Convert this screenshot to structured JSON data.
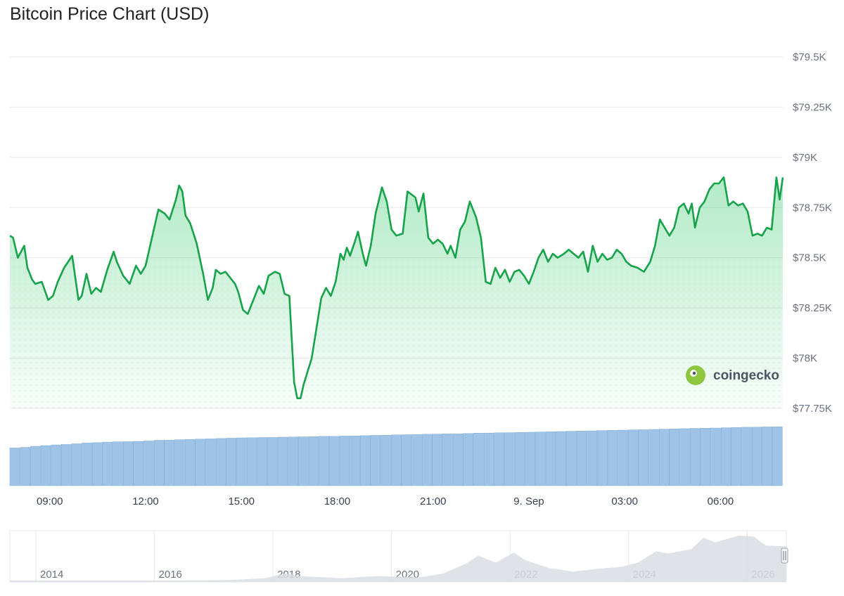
{
  "title": "Bitcoin Price Chart (USD)",
  "watermark": "coingecko",
  "colors": {
    "line": "#16a34a",
    "area": "#22c55e",
    "volume": "#9ec3e6",
    "volume_stroke": "#6fa3d4",
    "navigator": "#d9dee4",
    "grid": "#e5e7eb"
  },
  "chart_data": {
    "type": "area",
    "title": "Bitcoin Price Chart (USD)",
    "y_ticks": [
      "$79.5K",
      "$79.25K",
      "$79K",
      "$78.75K",
      "$78.5K",
      "$78.25K",
      "$78K",
      "$77.75K"
    ],
    "y_tick_values": [
      79500,
      79250,
      79000,
      78750,
      78500,
      78250,
      78000,
      77750
    ],
    "ylim": [
      77750,
      79500
    ],
    "x_ticks": [
      "09:00",
      "12:00",
      "15:00",
      "18:00",
      "21:00",
      "9. Sep",
      "03:00",
      "06:00"
    ],
    "x_tick_hours": [
      9,
      12,
      15,
      18,
      21,
      24,
      27,
      30
    ],
    "xlim_hours": [
      7.75,
      31.95
    ],
    "x_unit": "hours from 8 Sep 00:00",
    "grid": true,
    "series": [
      {
        "values": [
          [
            7.75,
            78610
          ],
          [
            7.85,
            78600
          ],
          [
            8.0,
            78500
          ],
          [
            8.2,
            78560
          ],
          [
            8.3,
            78450
          ],
          [
            8.45,
            78390
          ],
          [
            8.55,
            78370
          ],
          [
            8.75,
            78380
          ],
          [
            8.95,
            78290
          ],
          [
            9.1,
            78310
          ],
          [
            9.25,
            78380
          ],
          [
            9.45,
            78450
          ],
          [
            9.7,
            78510
          ],
          [
            9.9,
            78290
          ],
          [
            10.0,
            78310
          ],
          [
            10.15,
            78420
          ],
          [
            10.3,
            78320
          ],
          [
            10.45,
            78350
          ],
          [
            10.6,
            78330
          ],
          [
            10.8,
            78440
          ],
          [
            11.0,
            78530
          ],
          [
            11.1,
            78480
          ],
          [
            11.3,
            78410
          ],
          [
            11.4,
            78390
          ],
          [
            11.5,
            78370
          ],
          [
            11.7,
            78460
          ],
          [
            11.85,
            78420
          ],
          [
            12.0,
            78460
          ],
          [
            12.2,
            78600
          ],
          [
            12.4,
            78740
          ],
          [
            12.6,
            78720
          ],
          [
            12.75,
            78690
          ],
          [
            12.95,
            78790
          ],
          [
            13.05,
            78860
          ],
          [
            13.15,
            78830
          ],
          [
            13.25,
            78710
          ],
          [
            13.4,
            78670
          ],
          [
            13.6,
            78570
          ],
          [
            13.8,
            78420
          ],
          [
            13.95,
            78290
          ],
          [
            14.1,
            78350
          ],
          [
            14.2,
            78440
          ],
          [
            14.35,
            78420
          ],
          [
            14.5,
            78430
          ],
          [
            14.65,
            78400
          ],
          [
            14.8,
            78370
          ],
          [
            14.9,
            78330
          ],
          [
            15.05,
            78240
          ],
          [
            15.2,
            78220
          ],
          [
            15.4,
            78300
          ],
          [
            15.55,
            78360
          ],
          [
            15.7,
            78320
          ],
          [
            15.85,
            78410
          ],
          [
            16.05,
            78430
          ],
          [
            16.2,
            78420
          ],
          [
            16.35,
            78320
          ],
          [
            16.5,
            78310
          ],
          [
            16.65,
            77880
          ],
          [
            16.75,
            77800
          ],
          [
            16.85,
            77800
          ],
          [
            16.95,
            77870
          ],
          [
            17.2,
            78000
          ],
          [
            17.35,
            78150
          ],
          [
            17.5,
            78300
          ],
          [
            17.65,
            78350
          ],
          [
            17.8,
            78310
          ],
          [
            17.95,
            78380
          ],
          [
            18.1,
            78520
          ],
          [
            18.2,
            78490
          ],
          [
            18.3,
            78550
          ],
          [
            18.4,
            78510
          ],
          [
            18.55,
            78580
          ],
          [
            18.65,
            78630
          ],
          [
            18.8,
            78520
          ],
          [
            18.9,
            78460
          ],
          [
            19.05,
            78560
          ],
          [
            19.2,
            78720
          ],
          [
            19.4,
            78850
          ],
          [
            19.55,
            78780
          ],
          [
            19.7,
            78640
          ],
          [
            19.85,
            78610
          ],
          [
            20.05,
            78620
          ],
          [
            20.2,
            78830
          ],
          [
            20.45,
            78800
          ],
          [
            20.55,
            78730
          ],
          [
            20.7,
            78820
          ],
          [
            20.85,
            78600
          ],
          [
            21.0,
            78570
          ],
          [
            21.15,
            78590
          ],
          [
            21.3,
            78570
          ],
          [
            21.45,
            78520
          ],
          [
            21.55,
            78560
          ],
          [
            21.7,
            78500
          ],
          [
            21.85,
            78640
          ],
          [
            22.0,
            78680
          ],
          [
            22.15,
            78780
          ],
          [
            22.35,
            78700
          ],
          [
            22.5,
            78600
          ],
          [
            22.65,
            78380
          ],
          [
            22.8,
            78370
          ],
          [
            22.95,
            78450
          ],
          [
            23.1,
            78400
          ],
          [
            23.25,
            78440
          ],
          [
            23.4,
            78380
          ],
          [
            23.55,
            78430
          ],
          [
            23.7,
            78440
          ],
          [
            23.85,
            78410
          ],
          [
            24.0,
            78370
          ],
          [
            24.15,
            78430
          ],
          [
            24.3,
            78500
          ],
          [
            24.45,
            78540
          ],
          [
            24.6,
            78480
          ],
          [
            24.75,
            78520
          ],
          [
            24.9,
            78500
          ],
          [
            25.1,
            78520
          ],
          [
            25.25,
            78540
          ],
          [
            25.4,
            78520
          ],
          [
            25.55,
            78500
          ],
          [
            25.7,
            78530
          ],
          [
            25.85,
            78430
          ],
          [
            26.0,
            78560
          ],
          [
            26.15,
            78480
          ],
          [
            26.3,
            78520
          ],
          [
            26.45,
            78490
          ],
          [
            26.6,
            78500
          ],
          [
            26.75,
            78540
          ],
          [
            26.9,
            78520
          ],
          [
            27.05,
            78480
          ],
          [
            27.2,
            78460
          ],
          [
            27.4,
            78450
          ],
          [
            27.6,
            78430
          ],
          [
            27.8,
            78480
          ],
          [
            27.95,
            78560
          ],
          [
            28.1,
            78690
          ],
          [
            28.25,
            78650
          ],
          [
            28.4,
            78610
          ],
          [
            28.55,
            78650
          ],
          [
            28.7,
            78750
          ],
          [
            28.85,
            78770
          ],
          [
            29.0,
            78720
          ],
          [
            29.1,
            78770
          ],
          [
            29.2,
            78650
          ],
          [
            29.35,
            78750
          ],
          [
            29.5,
            78780
          ],
          [
            29.65,
            78840
          ],
          [
            29.8,
            78870
          ],
          [
            29.95,
            78870
          ],
          [
            30.1,
            78900
          ],
          [
            30.25,
            78760
          ],
          [
            30.4,
            78780
          ],
          [
            30.55,
            78760
          ],
          [
            30.7,
            78770
          ],
          [
            30.85,
            78730
          ],
          [
            31.0,
            78610
          ],
          [
            31.15,
            78620
          ],
          [
            31.3,
            78610
          ],
          [
            31.45,
            78650
          ],
          [
            31.6,
            78640
          ],
          [
            31.75,
            78900
          ],
          [
            31.85,
            78790
          ],
          [
            31.95,
            78900
          ]
        ]
      }
    ],
    "volume_series": {
      "x_hours_start": 7.75,
      "x_hours_end": 31.95,
      "values_relative": [
        0.64,
        0.651,
        0.669,
        0.681,
        0.693,
        0.7,
        0.712,
        0.727,
        0.732,
        0.74,
        0.745,
        0.748,
        0.753,
        0.76,
        0.77,
        0.773,
        0.781,
        0.787,
        0.791,
        0.796,
        0.801,
        0.807,
        0.812,
        0.815,
        0.818,
        0.819,
        0.824,
        0.827,
        0.83,
        0.834,
        0.838,
        0.838,
        0.843,
        0.846,
        0.849,
        0.855,
        0.858,
        0.862,
        0.866,
        0.87,
        0.873,
        0.877,
        0.881,
        0.882,
        0.887,
        0.893,
        0.895,
        0.898,
        0.901,
        0.905,
        0.908,
        0.912,
        0.916,
        0.92,
        0.925,
        0.928,
        0.932,
        0.936,
        0.94,
        0.944,
        0.948,
        0.951,
        0.956,
        0.96,
        0.965,
        0.969,
        0.973,
        0.977,
        0.98,
        0.984,
        0.988,
        0.992,
        0.994,
        0.998,
        1.0
      ]
    },
    "navigator": {
      "x_labels": [
        "2014",
        "2016",
        "2018",
        "2020",
        "2022",
        "2024",
        "2026"
      ],
      "x_label_years": [
        2014,
        2016,
        2018,
        2020,
        2022,
        2024,
        2026
      ],
      "xlim_years": [
        2013.3,
        2026.4
      ],
      "values_relative": [
        [
          2013.3,
          0.0
        ],
        [
          2015.5,
          0.0
        ],
        [
          2017.0,
          0.01
        ],
        [
          2017.6,
          0.05
        ],
        [
          2017.95,
          0.16
        ],
        [
          2018.2,
          0.1
        ],
        [
          2018.9,
          0.05
        ],
        [
          2019.5,
          0.1
        ],
        [
          2020.2,
          0.07
        ],
        [
          2020.6,
          0.15
        ],
        [
          2021.0,
          0.38
        ],
        [
          2021.2,
          0.55
        ],
        [
          2021.5,
          0.4
        ],
        [
          2021.8,
          0.62
        ],
        [
          2022.0,
          0.45
        ],
        [
          2022.4,
          0.28
        ],
        [
          2022.8,
          0.2
        ],
        [
          2023.2,
          0.26
        ],
        [
          2023.6,
          0.3
        ],
        [
          2023.9,
          0.4
        ],
        [
          2024.2,
          0.65
        ],
        [
          2024.4,
          0.6
        ],
        [
          2024.8,
          0.7
        ],
        [
          2025.0,
          0.95
        ],
        [
          2025.2,
          0.85
        ],
        [
          2025.6,
          1.0
        ],
        [
          2025.85,
          0.98
        ],
        [
          2026.05,
          0.78
        ],
        [
          2026.4,
          0.76
        ]
      ]
    }
  }
}
